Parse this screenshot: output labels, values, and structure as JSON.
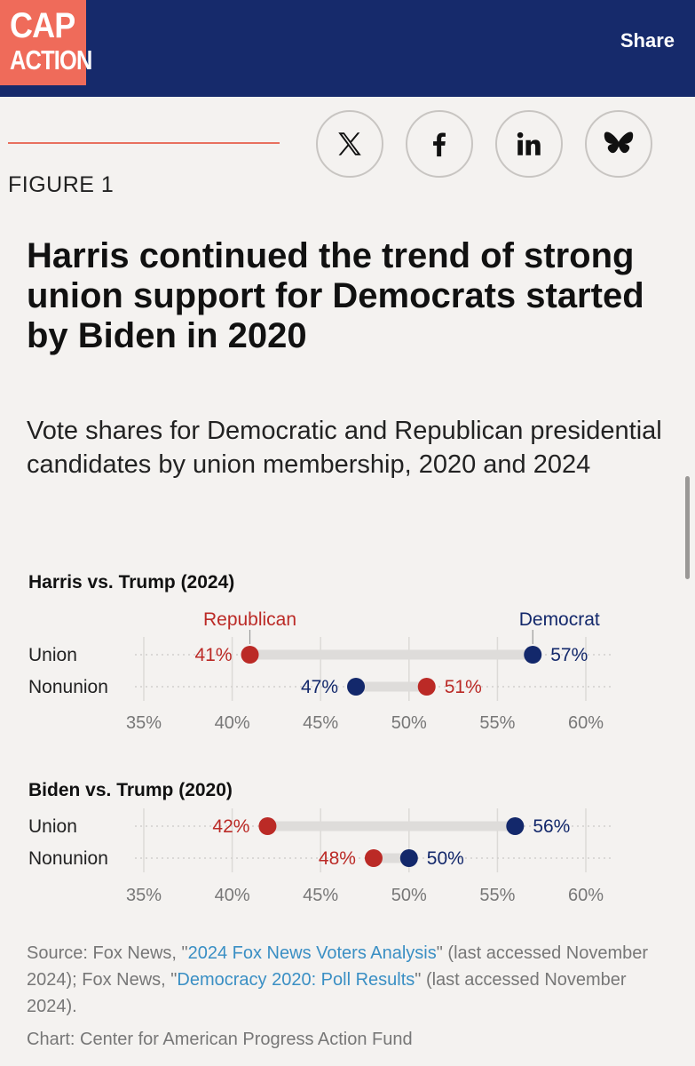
{
  "header": {
    "logo_line1": "CAP",
    "logo_line2": "ACTION",
    "share_label": "Share"
  },
  "social": [
    {
      "name": "x",
      "icon": "x-logo-icon"
    },
    {
      "name": "facebook",
      "icon": "facebook-icon"
    },
    {
      "name": "linkedin",
      "icon": "linkedin-icon"
    },
    {
      "name": "bluesky",
      "icon": "bluesky-butterfly-icon"
    }
  ],
  "figure_label": "FIGURE 1",
  "title": "Harris continued the trend of strong union support for Democrats started by Biden in 2020",
  "subtitle": "Vote shares for Democratic and Republican presidential candidates by union membership, 2020 and 2024",
  "colors": {
    "republican": "#bb2a26",
    "democrat": "#13286b",
    "accent": "#ef6b5a",
    "header": "#162a6b"
  },
  "chart_data": [
    {
      "type": "dot",
      "title": "Harris vs. Trump (2024)",
      "categories": [
        "Union",
        "Nonunion"
      ],
      "series": [
        {
          "name": "Republican",
          "values": [
            41,
            51
          ]
        },
        {
          "name": "Democrat",
          "values": [
            57,
            47
          ]
        }
      ],
      "value_labels": {
        "Republican": [
          "41%",
          "51%"
        ],
        "Democrat": [
          "57%",
          "47%"
        ]
      },
      "xlim": [
        35,
        60
      ],
      "ticks": [
        "35%",
        "40%",
        "45%",
        "50%",
        "55%",
        "60%"
      ],
      "legend": "inline above Union row"
    },
    {
      "type": "dot",
      "title": "Biden vs. Trump (2020)",
      "categories": [
        "Union",
        "Nonunion"
      ],
      "series": [
        {
          "name": "Republican",
          "values": [
            42,
            48
          ]
        },
        {
          "name": "Democrat",
          "values": [
            56,
            50
          ]
        }
      ],
      "value_labels": {
        "Republican": [
          "42%",
          "48%"
        ],
        "Democrat": [
          "56%",
          "50%"
        ]
      },
      "xlim": [
        35,
        60
      ],
      "ticks": [
        "35%",
        "40%",
        "45%",
        "50%",
        "55%",
        "60%"
      ]
    }
  ],
  "source": {
    "prefix": "Source: Fox News, \"",
    "link1": "2024 Fox News Voters Analysis",
    "mid": "\" (last accessed November 2024); Fox News, \"",
    "link2": "Democracy 2020: Poll Results",
    "suffix": "\" (last accessed November 2024)."
  },
  "credit": "Chart: Center for American Progress Action Fund"
}
